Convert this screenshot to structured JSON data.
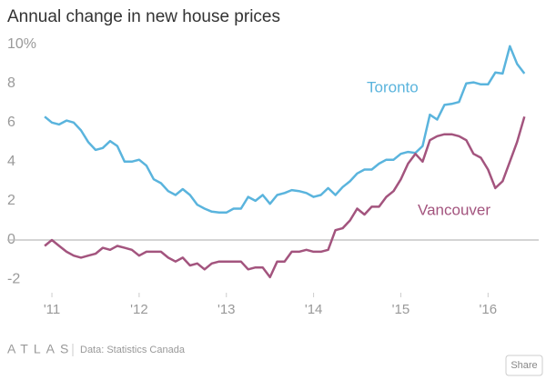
{
  "chart_data": {
    "type": "line",
    "title": "Annual change in new house prices",
    "x": [
      2010.917,
      2011.0,
      2011.083,
      2011.167,
      2011.25,
      2011.333,
      2011.417,
      2011.5,
      2011.583,
      2011.667,
      2011.75,
      2011.833,
      2011.917,
      2012.0,
      2012.083,
      2012.167,
      2012.25,
      2012.333,
      2012.417,
      2012.5,
      2012.583,
      2012.667,
      2012.75,
      2012.833,
      2012.917,
      2013.0,
      2013.083,
      2013.167,
      2013.25,
      2013.333,
      2013.417,
      2013.5,
      2013.583,
      2013.667,
      2013.75,
      2013.833,
      2013.917,
      2014.0,
      2014.083,
      2014.167,
      2014.25,
      2014.333,
      2014.417,
      2014.5,
      2014.583,
      2014.667,
      2014.75,
      2014.833,
      2014.917,
      2015.0,
      2015.083,
      2015.167,
      2015.25,
      2015.333,
      2015.417,
      2015.5,
      2015.583,
      2015.667,
      2015.75,
      2015.833,
      2015.917,
      2016.0,
      2016.083,
      2016.167,
      2016.25,
      2016.333,
      2016.417
    ],
    "series": [
      {
        "name": "Toronto",
        "color": "#5ab4dd",
        "values": [
          6.3,
          6.0,
          5.9,
          6.1,
          6.0,
          5.6,
          5.0,
          4.6,
          4.7,
          5.05,
          4.8,
          4.0,
          4.0,
          4.1,
          3.8,
          3.1,
          2.9,
          2.5,
          2.3,
          2.6,
          2.3,
          1.8,
          1.6,
          1.45,
          1.4,
          1.4,
          1.6,
          1.6,
          2.2,
          2.0,
          2.3,
          1.85,
          2.3,
          2.4,
          2.55,
          2.5,
          2.4,
          2.2,
          2.3,
          2.65,
          2.3,
          2.7,
          3.0,
          3.4,
          3.6,
          3.6,
          3.9,
          4.1,
          4.1,
          4.4,
          4.5,
          4.45,
          4.8,
          6.4,
          6.15,
          6.9,
          6.95,
          7.05,
          8.0,
          8.05,
          7.95,
          7.95,
          8.55,
          8.5,
          9.9,
          9.0,
          8.5
        ]
      },
      {
        "name": "Vancouver",
        "color": "#a3547e",
        "values": [
          -0.3,
          0.0,
          -0.3,
          -0.6,
          -0.8,
          -0.9,
          -0.8,
          -0.7,
          -0.4,
          -0.5,
          -0.3,
          -0.4,
          -0.5,
          -0.8,
          -0.6,
          -0.6,
          -0.6,
          -0.9,
          -1.1,
          -0.9,
          -1.3,
          -1.2,
          -1.5,
          -1.2,
          -1.1,
          -1.1,
          -1.1,
          -1.1,
          -1.5,
          -1.4,
          -1.4,
          -1.9,
          -1.1,
          -1.1,
          -0.6,
          -0.6,
          -0.5,
          -0.6,
          -0.6,
          -0.5,
          0.5,
          0.6,
          1.0,
          1.6,
          1.3,
          1.7,
          1.7,
          2.2,
          2.5,
          3.1,
          3.9,
          4.4,
          4.0,
          5.1,
          5.3,
          5.4,
          5.4,
          5.3,
          5.1,
          4.4,
          4.2,
          3.6,
          2.65,
          3.0,
          4.0,
          5.0,
          6.3
        ]
      }
    ],
    "xlim": [
      2010.77,
      2016.56
    ],
    "xticks": [
      {
        "value": 2011,
        "label": "'11"
      },
      {
        "value": 2012,
        "label": "'12"
      },
      {
        "value": 2013,
        "label": "'13"
      },
      {
        "value": 2014,
        "label": "'14"
      },
      {
        "value": 2015,
        "label": "'15"
      },
      {
        "value": 2016,
        "label": "'16"
      }
    ],
    "ylim": [
      -2.6,
      10.4
    ],
    "yticks": [
      -2,
      0,
      2,
      4,
      6,
      8,
      {
        "value": 10,
        "label": "10%"
      }
    ],
    "zero_line": true,
    "brand": "ATLAS",
    "source": "Data: Statistics Canada",
    "share": "Share"
  }
}
